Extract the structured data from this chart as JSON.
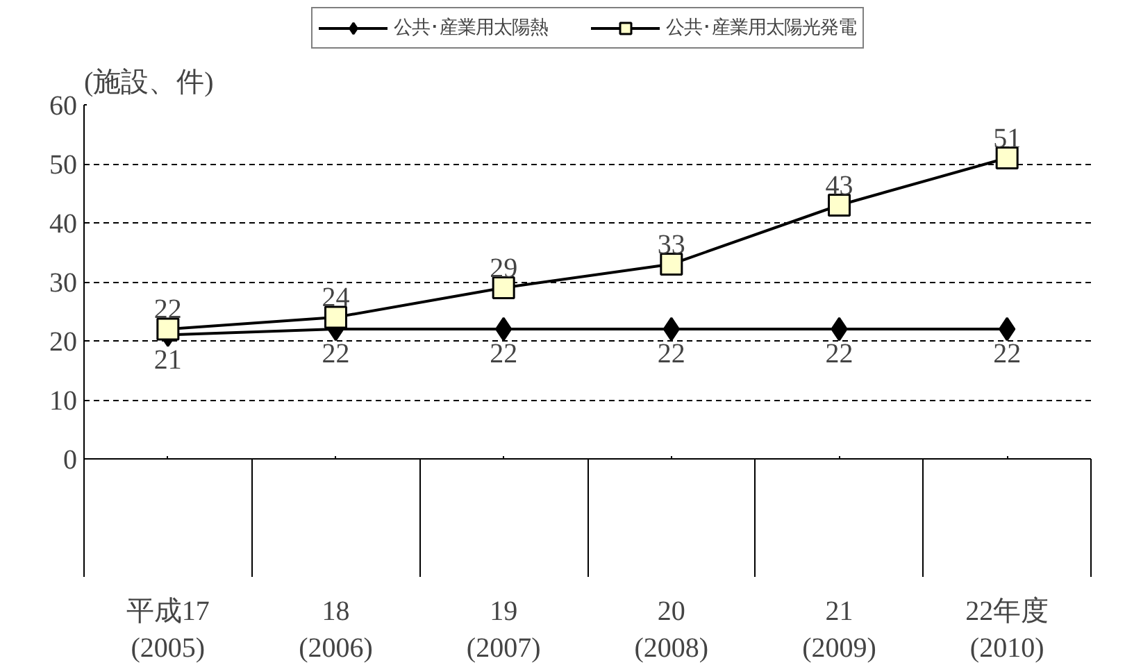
{
  "chart_data": {
    "type": "line",
    "ylabel": "(施設、件)",
    "categories": [
      "平成17\n(2005)",
      "18\n(2006)",
      "19\n(2007)",
      "20\n(2008)",
      "21\n(2009)",
      "22年度\n(2010)"
    ],
    "series": [
      {
        "name": "公共･産業用太陽熱",
        "color": "#000000",
        "marker": "diamond",
        "values": [
          21,
          22,
          22,
          22,
          22,
          22
        ]
      },
      {
        "name": "公共･産業用太陽光発電",
        "color": "#ffffcc",
        "marker": "square",
        "values": [
          22,
          24,
          29,
          33,
          43,
          51
        ]
      }
    ],
    "ylim": [
      0,
      60
    ],
    "yticks": [
      0,
      10,
      20,
      30,
      40,
      50,
      60
    ],
    "grid": "y",
    "legend": "top",
    "data_labels": true,
    "line_style": "solid"
  }
}
